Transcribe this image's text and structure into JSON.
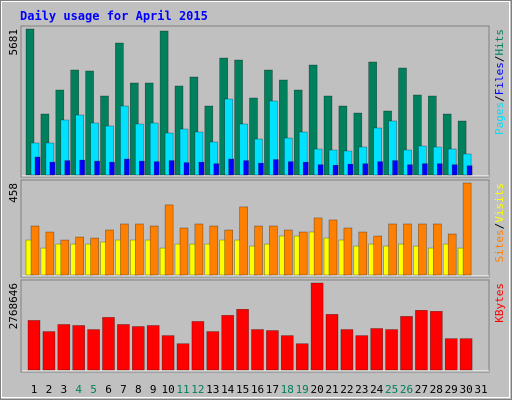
{
  "chart_data": [
    {
      "type": "bar",
      "title": "Daily usage for April 2015",
      "series": [
        {
          "name": "Pages",
          "color": "#00e0ff",
          "values": [
            1245,
            1245,
            2140,
            2334,
            2023,
            1906,
            2684,
            1984,
            2023,
            1634,
            1789,
            1673,
            1284,
            2956,
            1984,
            1400,
            2879,
            1439,
            1673,
            1011,
            972,
            934,
            1089,
            1828,
            2101,
            972,
            1128,
            1089,
            1011,
            817,
            0
          ]
        },
        {
          "name": "Files",
          "color": "#0000ff",
          "values": [
            700,
            500,
            560,
            580,
            540,
            500,
            620,
            540,
            520,
            560,
            480,
            500,
            440,
            620,
            560,
            460,
            600,
            520,
            500,
            400,
            380,
            420,
            440,
            520,
            560,
            400,
            440,
            440,
            400,
            360,
            0
          ]
        },
        {
          "name": "Hits",
          "color": "#00805c",
          "values": [
            5681,
            2373,
            3307,
            4085,
            4047,
            3074,
            5136,
            3580,
            3580,
            5603,
            3463,
            3813,
            2685,
            4552,
            4474,
            2996,
            4085,
            3696,
            3307,
            4280,
            3074,
            2685,
            2412,
            4397,
            2490,
            4163,
            3113,
            3074,
            2373,
            2101,
            0
          ]
        }
      ],
      "ylim": [
        0,
        5681
      ],
      "yticks": [
        5681
      ],
      "legend_separator": "/"
    },
    {
      "type": "bar",
      "series": [
        {
          "name": "Sites",
          "color": "#ff8000",
          "values": [
            244,
            214,
            174,
            189,
            184,
            224,
            254,
            254,
            244,
            349,
            234,
            254,
            244,
            224,
            339,
            244,
            244,
            224,
            214,
            284,
            274,
            234,
            214,
            194,
            254,
            254,
            254,
            254,
            204,
            458,
            0
          ]
        },
        {
          "name": "Visits",
          "color": "#ffff00",
          "values": [
            174,
            134,
            154,
            154,
            154,
            164,
            174,
            174,
            174,
            134,
            154,
            154,
            154,
            174,
            174,
            144,
            154,
            194,
            194,
            214,
            184,
            174,
            144,
            154,
            144,
            154,
            144,
            134,
            154,
            134,
            0
          ]
        }
      ],
      "ylim": [
        0,
        458
      ],
      "yticks": [
        458
      ],
      "legend_separator": "/"
    },
    {
      "type": "bar",
      "categories": [
        1,
        2,
        3,
        4,
        5,
        6,
        7,
        8,
        9,
        10,
        11,
        12,
        13,
        14,
        15,
        16,
        17,
        18,
        19,
        20,
        21,
        22,
        23,
        24,
        25,
        26,
        27,
        28,
        29,
        30,
        31
      ],
      "category_colors": [
        "#000000",
        "#000000",
        "#000000",
        "#00805c",
        "#00805c",
        "#000000",
        "#000000",
        "#000000",
        "#000000",
        "#000000",
        "#00805c",
        "#00805c",
        "#000000",
        "#000000",
        "#000000",
        "#000000",
        "#000000",
        "#00805c",
        "#00805c",
        "#000000",
        "#000000",
        "#000000",
        "#000000",
        "#000000",
        "#00805c",
        "#00805c",
        "#000000",
        "#000000",
        "#000000",
        "#000000",
        "#000000"
      ],
      "series": [
        {
          "name": "KBytes",
          "color": "#ff0000",
          "values": [
            1577506,
            1223372,
            1448730,
            1416536,
            1287760,
            1674088,
            1448730,
            1384342,
            1416536,
            1094596,
            837044,
            1545312,
            1223372,
            1738476,
            1931640,
            1287760,
            1255566,
            1094596,
            837044,
            2768646,
            1770670,
            1287760,
            1094596,
            1319954,
            1287760,
            1706282,
            1899446,
            1867252,
            998014,
            998014,
            0
          ]
        }
      ],
      "ylim": [
        0,
        2768646
      ],
      "yticks": [
        2768646
      ],
      "legend_separator": "/"
    }
  ]
}
